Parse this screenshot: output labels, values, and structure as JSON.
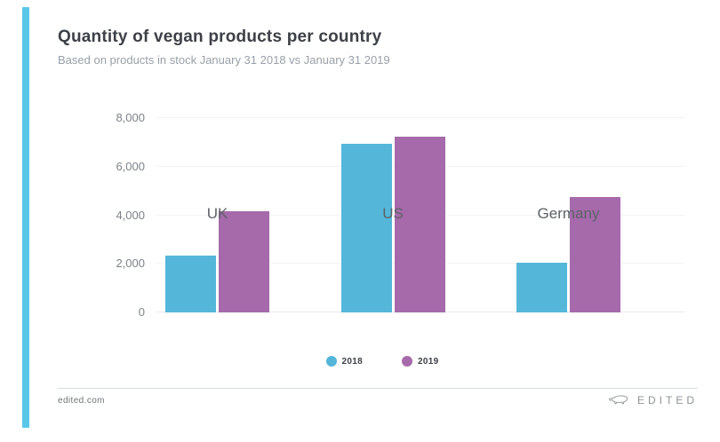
{
  "page": {
    "accent_color": "#5ac7e9",
    "background": "#ffffff"
  },
  "header": {
    "title": "Quantity of vegan products per country",
    "subtitle": "Based on products in stock January 31 2018 vs January 31 2019"
  },
  "chart_data": {
    "type": "bar",
    "title": "Quantity of vegan products per country",
    "subtitle": "Based on products in stock January 31 2018 vs January 31 2019",
    "categories": [
      "UK",
      "US",
      "Germany"
    ],
    "series": [
      {
        "name": "2018",
        "color": "#54b7d9",
        "values": [
          2350,
          6950,
          2050
        ]
      },
      {
        "name": "2019",
        "color": "#a66aab",
        "values": [
          4150,
          7250,
          4750
        ]
      }
    ],
    "xlabel": "",
    "ylabel": "",
    "ylim": [
      0,
      8000
    ],
    "yticks": [
      0,
      2000,
      4000,
      6000,
      8000
    ],
    "ytick_labels": [
      "0",
      "2,000",
      "4,000",
      "6,000",
      "8,000"
    ],
    "grid": true,
    "legend_position": "bottom"
  },
  "footer": {
    "site": "edited.com",
    "brand": "EDITED",
    "logo_icon": "bear-logo-icon"
  }
}
